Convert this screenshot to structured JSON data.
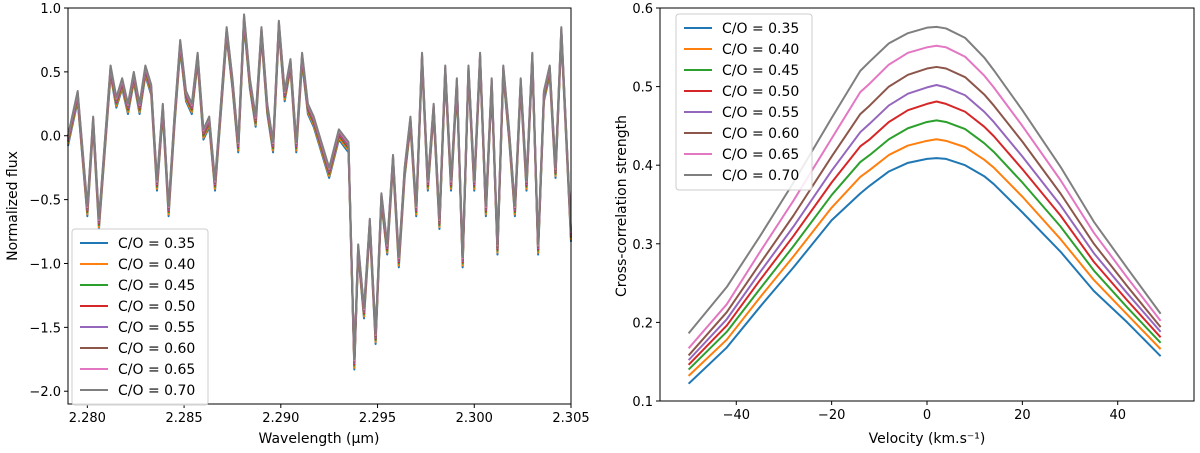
{
  "chart_data": [
    {
      "type": "line",
      "title": "",
      "xlabel": "Wavelength (µm)",
      "ylabel": "Normalized flux",
      "xlim": [
        2.279,
        2.305
      ],
      "ylim": [
        -2.1,
        1.0
      ],
      "x_ticks": [
        {
          "value": 2.28,
          "label": "2.280"
        },
        {
          "value": 2.285,
          "label": "2.285"
        },
        {
          "value": 2.29,
          "label": "2.290"
        },
        {
          "value": 2.295,
          "label": "2.295"
        },
        {
          "value": 2.3,
          "label": "2.300"
        },
        {
          "value": 2.305,
          "label": "2.305"
        }
      ],
      "y_ticks": [
        {
          "value": 1.0,
          "label": "1.0"
        },
        {
          "value": 0.5,
          "label": "0.5"
        },
        {
          "value": 0.0,
          "label": "0.0"
        },
        {
          "value": -0.5,
          "label": "−0.5"
        },
        {
          "value": -1.0,
          "label": "−1.0"
        },
        {
          "value": -1.5,
          "label": "−1.5"
        },
        {
          "value": -2.0,
          "label": "−2.0"
        }
      ],
      "legend_position": "lower-left",
      "base_x": [
        2.279,
        2.2795,
        2.28,
        2.2803,
        2.2806,
        2.2809,
        2.2812,
        2.2815,
        2.2818,
        2.2821,
        2.2824,
        2.2827,
        2.283,
        2.2833,
        2.2836,
        2.2839,
        2.2842,
        2.2845,
        2.2848,
        2.2851,
        2.2854,
        2.2857,
        2.286,
        2.2863,
        2.2866,
        2.2869,
        2.2872,
        2.2875,
        2.2878,
        2.2881,
        2.2884,
        2.2887,
        2.289,
        2.2893,
        2.2896,
        2.2899,
        2.2902,
        2.2905,
        2.2908,
        2.2911,
        2.2914,
        2.2917,
        2.292,
        2.2925,
        2.293,
        2.2935,
        2.2938,
        2.294,
        2.2943,
        2.2946,
        2.2949,
        2.2952,
        2.2955,
        2.2958,
        2.2961,
        2.2964,
        2.2967,
        2.297,
        2.2973,
        2.2976,
        2.2979,
        2.2982,
        2.2985,
        2.2988,
        2.2991,
        2.2994,
        2.2997,
        2.3,
        2.3003,
        2.3006,
        2.3009,
        2.3012,
        2.3015,
        2.3018,
        2.3021,
        2.3024,
        2.3027,
        2.303,
        2.3033,
        2.3036,
        2.3039,
        2.3042,
        2.3045,
        2.305
      ],
      "base_y": [
        -0.05,
        0.3,
        -0.6,
        0.1,
        -0.7,
        -0.1,
        0.5,
        0.25,
        0.4,
        0.2,
        0.45,
        0.2,
        0.5,
        0.35,
        -0.4,
        0.2,
        -0.6,
        0.1,
        0.7,
        0.3,
        0.2,
        0.6,
        0.0,
        0.1,
        -0.4,
        0.2,
        0.8,
        0.4,
        -0.1,
        0.9,
        0.4,
        0.1,
        0.8,
        0.2,
        -0.1,
        0.85,
        0.3,
        0.55,
        -0.1,
        0.6,
        0.2,
        0.1,
        -0.05,
        -0.3,
        0.0,
        -0.1,
        -1.8,
        -0.9,
        -1.4,
        -0.7,
        -1.6,
        -0.5,
        -0.9,
        -0.2,
        -1.0,
        -0.3,
        0.1,
        -0.6,
        0.6,
        -0.4,
        0.2,
        -0.7,
        0.5,
        -0.4,
        0.4,
        -1.0,
        0.5,
        -0.4,
        0.6,
        -0.6,
        0.4,
        -0.9,
        0.5,
        0.0,
        -0.6,
        0.4,
        -0.4,
        0.6,
        -0.9,
        0.3,
        0.5,
        -0.3,
        0.8,
        -0.8
      ],
      "offsets": [
        -0.03,
        -0.015,
        0.0,
        0.01,
        0.02,
        0.03,
        0.04,
        0.05
      ],
      "series": [
        {
          "name": "C/O = 0.35",
          "color": "#1f77b4"
        },
        {
          "name": "C/O = 0.40",
          "color": "#ff7f0e"
        },
        {
          "name": "C/O = 0.45",
          "color": "#2ca02c"
        },
        {
          "name": "C/O = 0.50",
          "color": "#d62728"
        },
        {
          "name": "C/O = 0.55",
          "color": "#9467bd"
        },
        {
          "name": "C/O = 0.60",
          "color": "#8c564b"
        },
        {
          "name": "C/O = 0.65",
          "color": "#e377c2"
        },
        {
          "name": "C/O = 0.70",
          "color": "#7f7f7f"
        }
      ]
    },
    {
      "type": "line",
      "title": "",
      "xlabel": "Velocity (km.s⁻¹)",
      "ylabel": "Cross-correlation strength",
      "xlim": [
        -56,
        56
      ],
      "ylim": [
        0.1,
        0.6
      ],
      "x_ticks": [
        {
          "value": -40,
          "label": "−40"
        },
        {
          "value": -20,
          "label": "−20"
        },
        {
          "value": 0,
          "label": "0"
        },
        {
          "value": 20,
          "label": "20"
        },
        {
          "value": 40,
          "label": "40"
        }
      ],
      "y_ticks": [
        {
          "value": 0.1,
          "label": "0.1"
        },
        {
          "value": 0.2,
          "label": "0.2"
        },
        {
          "value": 0.3,
          "label": "0.3"
        },
        {
          "value": 0.4,
          "label": "0.4"
        },
        {
          "value": 0.5,
          "label": "0.5"
        },
        {
          "value": 0.6,
          "label": "0.6"
        }
      ],
      "legend_position": "upper-left",
      "x": [
        -50,
        -42,
        -35,
        -28,
        -20,
        -14,
        -12,
        -8,
        -4,
        0,
        2,
        4,
        8,
        12,
        14,
        20,
        28,
        35,
        42,
        49
      ],
      "series": [
        {
          "name": "C/O = 0.35",
          "color": "#1f77b4",
          "values": [
            0.122,
            0.168,
            0.22,
            0.27,
            0.33,
            0.364,
            0.374,
            0.392,
            0.403,
            0.408,
            0.409,
            0.408,
            0.4,
            0.386,
            0.376,
            0.34,
            0.29,
            0.24,
            0.2,
            0.157
          ]
        },
        {
          "name": "C/O = 0.40",
          "color": "#ff7f0e",
          "values": [
            0.132,
            0.178,
            0.232,
            0.284,
            0.346,
            0.385,
            0.394,
            0.413,
            0.425,
            0.431,
            0.433,
            0.431,
            0.423,
            0.407,
            0.397,
            0.36,
            0.306,
            0.254,
            0.21,
            0.166
          ]
        },
        {
          "name": "C/O = 0.45",
          "color": "#2ca02c",
          "values": [
            0.14,
            0.188,
            0.243,
            0.297,
            0.362,
            0.404,
            0.413,
            0.433,
            0.447,
            0.455,
            0.457,
            0.455,
            0.446,
            0.428,
            0.417,
            0.378,
            0.322,
            0.266,
            0.219,
            0.174
          ]
        },
        {
          "name": "C/O = 0.50",
          "color": "#d62728",
          "values": [
            0.146,
            0.196,
            0.254,
            0.31,
            0.378,
            0.424,
            0.433,
            0.455,
            0.47,
            0.478,
            0.481,
            0.478,
            0.468,
            0.449,
            0.437,
            0.395,
            0.336,
            0.277,
            0.228,
            0.181
          ]
        },
        {
          "name": "C/O = 0.55",
          "color": "#9467bd",
          "values": [
            0.152,
            0.204,
            0.264,
            0.322,
            0.393,
            0.442,
            0.453,
            0.476,
            0.491,
            0.499,
            0.502,
            0.499,
            0.489,
            0.468,
            0.455,
            0.411,
            0.349,
            0.288,
            0.237,
            0.188
          ]
        },
        {
          "name": "C/O = 0.60",
          "color": "#8c564b",
          "values": [
            0.158,
            0.213,
            0.275,
            0.336,
            0.411,
            0.465,
            0.476,
            0.5,
            0.515,
            0.523,
            0.525,
            0.523,
            0.512,
            0.49,
            0.476,
            0.43,
            0.364,
            0.3,
            0.246,
            0.194
          ]
        },
        {
          "name": "C/O = 0.65",
          "color": "#e377c2",
          "values": [
            0.167,
            0.223,
            0.29,
            0.355,
            0.434,
            0.493,
            0.504,
            0.528,
            0.543,
            0.55,
            0.552,
            0.55,
            0.538,
            0.514,
            0.499,
            0.45,
            0.381,
            0.314,
            0.257,
            0.202
          ]
        },
        {
          "name": "C/O = 0.70",
          "color": "#7f7f7f",
          "values": [
            0.186,
            0.245,
            0.31,
            0.378,
            0.46,
            0.52,
            0.532,
            0.555,
            0.568,
            0.575,
            0.576,
            0.574,
            0.562,
            0.537,
            0.521,
            0.47,
            0.398,
            0.328,
            0.269,
            0.211
          ]
        }
      ]
    }
  ]
}
